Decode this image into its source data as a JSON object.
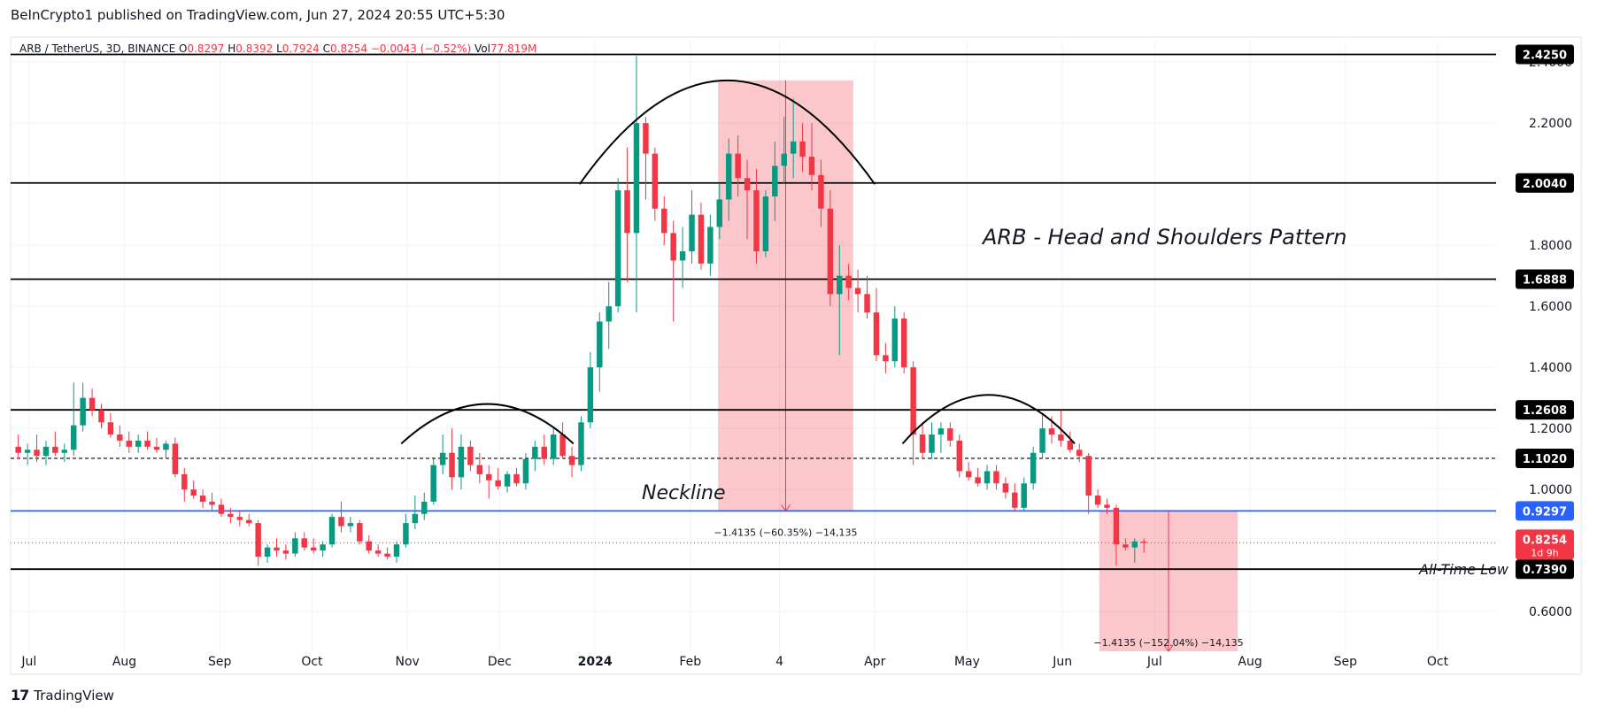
{
  "header": {
    "publisher": "BeInCrypto1 published on TradingView.com, Jun 27, 2024 20:55 UTC+5:30"
  },
  "footer": {
    "logo_mark": "17",
    "logo_text": "TradingView"
  },
  "chart_data": {
    "type": "candlestick",
    "symbol": "ARB / TetherUS, 3D, BINANCE",
    "ohlc_legend": {
      "O_label": "O",
      "O": "0.8297",
      "H_label": "H",
      "H": "0.8392",
      "L_label": "L",
      "L": "0.7924",
      "C_label": "C",
      "C": "0.8254",
      "change": "−0.0043 (−0.52%)",
      "vol_label": "Vol",
      "vol": "77.819M"
    },
    "title": "ARB - Head and Shoulders Pattern",
    "neckline_label": "Neckline",
    "all_time_low_label": "All-Time Low",
    "y_ticks": [
      "2.4000",
      "2.2000",
      "1.8000",
      "1.6000",
      "1.4000",
      "1.2000",
      "1.0000",
      "0.6000"
    ],
    "y_range": [
      0.47,
      2.47
    ],
    "x_ticks": [
      {
        "label": "Jul",
        "date": "2023-07-01"
      },
      {
        "label": "Aug",
        "date": "2023-08-01"
      },
      {
        "label": "Sep",
        "date": "2023-09-01"
      },
      {
        "label": "Oct",
        "date": "2023-10-01"
      },
      {
        "label": "Nov",
        "date": "2023-11-01"
      },
      {
        "label": "Dec",
        "date": "2023-12-01"
      },
      {
        "label": "2024",
        "date": "2024-01-01"
      },
      {
        "label": "Feb",
        "date": "2024-02-01"
      },
      {
        "label": "4",
        "date": "2024-03-01"
      },
      {
        "label": "Apr",
        "date": "2024-04-01"
      },
      {
        "label": "May",
        "date": "2024-05-01"
      },
      {
        "label": "Jun",
        "date": "2024-06-01"
      },
      {
        "label": "Jul",
        "date": "2024-07-01"
      },
      {
        "label": "Aug",
        "date": "2024-08-01"
      },
      {
        "label": "Sep",
        "date": "2024-09-01"
      },
      {
        "label": "Oct",
        "date": "2024-10-01"
      }
    ],
    "x_range": [
      "2023-06-25",
      "2024-10-20"
    ],
    "levels": [
      {
        "value": 2.425,
        "label": "2.4250",
        "style": "solid",
        "color": "#000000"
      },
      {
        "value": 2.004,
        "label": "2.0040",
        "style": "solid",
        "color": "#000000"
      },
      {
        "value": 1.6888,
        "label": "1.6888",
        "style": "solid",
        "color": "#000000"
      },
      {
        "value": 1.2608,
        "label": "1.2608",
        "style": "solid",
        "color": "#000000"
      },
      {
        "value": 1.102,
        "label": "1.1020",
        "style": "dashed",
        "color": "#000000"
      },
      {
        "value": 0.9297,
        "label": "0.9297",
        "style": "solid",
        "color": "#2962ff"
      },
      {
        "value": 0.739,
        "label": "0.7390",
        "style": "solid",
        "color": "#000000"
      }
    ],
    "current_price": {
      "value": 0.8254,
      "label": "0.8254",
      "countdown": "1d 9h",
      "color": "#f23645"
    },
    "measure_zones": [
      {
        "start": "2024-02-10",
        "end": "2024-03-25",
        "top": 2.34,
        "bottom": 0.9297,
        "label": "−1.4135 (−60.35%) −14,135"
      },
      {
        "start": "2024-06-13",
        "end": "2024-07-28",
        "top": 0.9297,
        "bottom": 0.47,
        "label": "−1.4135 (−152.04%) −14,135"
      }
    ],
    "arcs": [
      {
        "start": "2023-10-30",
        "end": "2023-12-25",
        "peak": 1.28,
        "base": 1.15
      },
      {
        "start": "2023-12-27",
        "end": "2024-04-01",
        "peak": 2.34,
        "base": 2.0
      },
      {
        "start": "2024-04-10",
        "end": "2024-06-05",
        "peak": 1.31,
        "base": 1.15
      }
    ],
    "colors": {
      "up": "#089981",
      "down": "#f23645"
    },
    "candles": [
      {
        "d": "2023-06-26",
        "o": 1.14,
        "h": 1.18,
        "l": 1.1,
        "c": 1.12
      },
      {
        "d": "2023-06-29",
        "o": 1.12,
        "h": 1.15,
        "l": 1.08,
        "c": 1.13
      },
      {
        "d": "2023-07-02",
        "o": 1.13,
        "h": 1.18,
        "l": 1.09,
        "c": 1.11
      },
      {
        "d": "2023-07-05",
        "o": 1.11,
        "h": 1.16,
        "l": 1.08,
        "c": 1.14
      },
      {
        "d": "2023-07-08",
        "o": 1.14,
        "h": 1.19,
        "l": 1.11,
        "c": 1.12
      },
      {
        "d": "2023-07-11",
        "o": 1.12,
        "h": 1.15,
        "l": 1.09,
        "c": 1.13
      },
      {
        "d": "2023-07-14",
        "o": 1.13,
        "h": 1.35,
        "l": 1.11,
        "c": 1.21
      },
      {
        "d": "2023-07-17",
        "o": 1.21,
        "h": 1.35,
        "l": 1.19,
        "c": 1.3
      },
      {
        "d": "2023-07-20",
        "o": 1.3,
        "h": 1.33,
        "l": 1.24,
        "c": 1.26
      },
      {
        "d": "2023-07-23",
        "o": 1.26,
        "h": 1.28,
        "l": 1.2,
        "c": 1.22
      },
      {
        "d": "2023-07-26",
        "o": 1.22,
        "h": 1.25,
        "l": 1.17,
        "c": 1.18
      },
      {
        "d": "2023-07-29",
        "o": 1.18,
        "h": 1.21,
        "l": 1.14,
        "c": 1.16
      },
      {
        "d": "2023-08-01",
        "o": 1.16,
        "h": 1.19,
        "l": 1.12,
        "c": 1.14
      },
      {
        "d": "2023-08-04",
        "o": 1.14,
        "h": 1.18,
        "l": 1.12,
        "c": 1.16
      },
      {
        "d": "2023-08-07",
        "o": 1.16,
        "h": 1.19,
        "l": 1.13,
        "c": 1.14
      },
      {
        "d": "2023-08-10",
        "o": 1.14,
        "h": 1.17,
        "l": 1.12,
        "c": 1.13
      },
      {
        "d": "2023-08-13",
        "o": 1.13,
        "h": 1.16,
        "l": 1.1,
        "c": 1.15
      },
      {
        "d": "2023-08-16",
        "o": 1.15,
        "h": 1.17,
        "l": 1.04,
        "c": 1.05
      },
      {
        "d": "2023-08-19",
        "o": 1.05,
        "h": 1.07,
        "l": 0.96,
        "c": 1.0
      },
      {
        "d": "2023-08-22",
        "o": 1.0,
        "h": 1.03,
        "l": 0.97,
        "c": 0.98
      },
      {
        "d": "2023-08-25",
        "o": 0.98,
        "h": 1.0,
        "l": 0.94,
        "c": 0.96
      },
      {
        "d": "2023-08-28",
        "o": 0.96,
        "h": 0.99,
        "l": 0.93,
        "c": 0.95
      },
      {
        "d": "2023-08-31",
        "o": 0.95,
        "h": 0.97,
        "l": 0.91,
        "c": 0.92
      },
      {
        "d": "2023-09-03",
        "o": 0.92,
        "h": 0.94,
        "l": 0.89,
        "c": 0.91
      },
      {
        "d": "2023-09-06",
        "o": 0.91,
        "h": 0.93,
        "l": 0.88,
        "c": 0.9
      },
      {
        "d": "2023-09-09",
        "o": 0.9,
        "h": 0.92,
        "l": 0.88,
        "c": 0.89
      },
      {
        "d": "2023-09-12",
        "o": 0.89,
        "h": 0.9,
        "l": 0.75,
        "c": 0.78
      },
      {
        "d": "2023-09-15",
        "o": 0.78,
        "h": 0.82,
        "l": 0.76,
        "c": 0.81
      },
      {
        "d": "2023-09-18",
        "o": 0.81,
        "h": 0.84,
        "l": 0.78,
        "c": 0.8
      },
      {
        "d": "2023-09-21",
        "o": 0.8,
        "h": 0.82,
        "l": 0.77,
        "c": 0.79
      },
      {
        "d": "2023-09-24",
        "o": 0.79,
        "h": 0.86,
        "l": 0.78,
        "c": 0.84
      },
      {
        "d": "2023-09-27",
        "o": 0.84,
        "h": 0.86,
        "l": 0.8,
        "c": 0.81
      },
      {
        "d": "2023-09-30",
        "o": 0.81,
        "h": 0.84,
        "l": 0.79,
        "c": 0.8
      },
      {
        "d": "2023-10-03",
        "o": 0.8,
        "h": 0.83,
        "l": 0.78,
        "c": 0.82
      },
      {
        "d": "2023-10-06",
        "o": 0.82,
        "h": 0.92,
        "l": 0.81,
        "c": 0.91
      },
      {
        "d": "2023-10-09",
        "o": 0.91,
        "h": 0.96,
        "l": 0.86,
        "c": 0.88
      },
      {
        "d": "2023-10-12",
        "o": 0.88,
        "h": 0.91,
        "l": 0.86,
        "c": 0.89
      },
      {
        "d": "2023-10-15",
        "o": 0.89,
        "h": 0.9,
        "l": 0.82,
        "c": 0.83
      },
      {
        "d": "2023-10-18",
        "o": 0.83,
        "h": 0.85,
        "l": 0.79,
        "c": 0.8
      },
      {
        "d": "2023-10-21",
        "o": 0.8,
        "h": 0.82,
        "l": 0.78,
        "c": 0.79
      },
      {
        "d": "2023-10-24",
        "o": 0.79,
        "h": 0.81,
        "l": 0.77,
        "c": 0.78
      },
      {
        "d": "2023-10-27",
        "o": 0.78,
        "h": 0.83,
        "l": 0.76,
        "c": 0.82
      },
      {
        "d": "2023-10-30",
        "o": 0.82,
        "h": 0.92,
        "l": 0.81,
        "c": 0.89
      },
      {
        "d": "2023-11-02",
        "o": 0.89,
        "h": 0.98,
        "l": 0.87,
        "c": 0.92
      },
      {
        "d": "2023-11-05",
        "o": 0.92,
        "h": 0.99,
        "l": 0.9,
        "c": 0.96
      },
      {
        "d": "2023-11-08",
        "o": 0.96,
        "h": 1.1,
        "l": 0.95,
        "c": 1.08
      },
      {
        "d": "2023-11-11",
        "o": 1.08,
        "h": 1.18,
        "l": 1.05,
        "c": 1.12
      },
      {
        "d": "2023-11-14",
        "o": 1.12,
        "h": 1.2,
        "l": 1.0,
        "c": 1.04
      },
      {
        "d": "2023-11-17",
        "o": 1.04,
        "h": 1.18,
        "l": 1.0,
        "c": 1.14
      },
      {
        "d": "2023-11-20",
        "o": 1.14,
        "h": 1.16,
        "l": 1.06,
        "c": 1.08
      },
      {
        "d": "2023-11-23",
        "o": 1.08,
        "h": 1.12,
        "l": 1.02,
        "c": 1.05
      },
      {
        "d": "2023-11-26",
        "o": 1.05,
        "h": 1.08,
        "l": 0.97,
        "c": 1.03
      },
      {
        "d": "2023-11-29",
        "o": 1.03,
        "h": 1.07,
        "l": 1.0,
        "c": 1.01
      },
      {
        "d": "2023-12-02",
        "o": 1.01,
        "h": 1.06,
        "l": 0.99,
        "c": 1.05
      },
      {
        "d": "2023-12-05",
        "o": 1.05,
        "h": 1.07,
        "l": 1.01,
        "c": 1.02
      },
      {
        "d": "2023-12-08",
        "o": 1.02,
        "h": 1.12,
        "l": 1.0,
        "c": 1.1
      },
      {
        "d": "2023-12-11",
        "o": 1.1,
        "h": 1.16,
        "l": 1.06,
        "c": 1.14
      },
      {
        "d": "2023-12-14",
        "o": 1.14,
        "h": 1.18,
        "l": 1.08,
        "c": 1.1
      },
      {
        "d": "2023-12-17",
        "o": 1.1,
        "h": 1.2,
        "l": 1.08,
        "c": 1.18
      },
      {
        "d": "2023-12-20",
        "o": 1.18,
        "h": 1.22,
        "l": 1.1,
        "c": 1.11
      },
      {
        "d": "2023-12-23",
        "o": 1.11,
        "h": 1.14,
        "l": 1.04,
        "c": 1.08
      },
      {
        "d": "2023-12-26",
        "o": 1.08,
        "h": 1.24,
        "l": 1.06,
        "c": 1.22
      },
      {
        "d": "2023-12-29",
        "o": 1.22,
        "h": 1.45,
        "l": 1.2,
        "c": 1.4
      },
      {
        "d": "2024-01-01",
        "o": 1.4,
        "h": 1.58,
        "l": 1.32,
        "c": 1.55
      },
      {
        "d": "2024-01-04",
        "o": 1.55,
        "h": 1.68,
        "l": 1.46,
        "c": 1.6
      },
      {
        "d": "2024-01-07",
        "o": 1.6,
        "h": 2.02,
        "l": 1.58,
        "c": 1.98
      },
      {
        "d": "2024-01-10",
        "o": 1.98,
        "h": 2.12,
        "l": 1.68,
        "c": 1.84
      },
      {
        "d": "2024-01-13",
        "o": 1.84,
        "h": 2.42,
        "l": 1.58,
        "c": 2.2
      },
      {
        "d": "2024-01-16",
        "o": 2.2,
        "h": 2.22,
        "l": 1.95,
        "c": 2.1
      },
      {
        "d": "2024-01-19",
        "o": 2.1,
        "h": 2.12,
        "l": 1.88,
        "c": 1.92
      },
      {
        "d": "2024-01-22",
        "o": 1.92,
        "h": 1.96,
        "l": 1.8,
        "c": 1.84
      },
      {
        "d": "2024-01-25",
        "o": 1.84,
        "h": 1.88,
        "l": 1.55,
        "c": 1.75
      },
      {
        "d": "2024-01-28",
        "o": 1.75,
        "h": 1.86,
        "l": 1.66,
        "c": 1.78
      },
      {
        "d": "2024-01-31",
        "o": 1.78,
        "h": 1.98,
        "l": 1.74,
        "c": 1.9
      },
      {
        "d": "2024-02-03",
        "o": 1.9,
        "h": 1.94,
        "l": 1.72,
        "c": 1.74
      },
      {
        "d": "2024-02-06",
        "o": 1.74,
        "h": 1.9,
        "l": 1.7,
        "c": 1.86
      },
      {
        "d": "2024-02-09",
        "o": 1.86,
        "h": 2.0,
        "l": 1.82,
        "c": 1.95
      },
      {
        "d": "2024-02-12",
        "o": 1.95,
        "h": 2.15,
        "l": 1.88,
        "c": 2.1
      },
      {
        "d": "2024-02-15",
        "o": 2.1,
        "h": 2.16,
        "l": 1.96,
        "c": 2.02
      },
      {
        "d": "2024-02-18",
        "o": 2.02,
        "h": 2.08,
        "l": 1.82,
        "c": 1.98
      },
      {
        "d": "2024-02-21",
        "o": 1.98,
        "h": 2.05,
        "l": 1.74,
        "c": 1.78
      },
      {
        "d": "2024-02-24",
        "o": 1.78,
        "h": 1.98,
        "l": 1.76,
        "c": 1.96
      },
      {
        "d": "2024-02-27",
        "o": 1.96,
        "h": 2.14,
        "l": 1.88,
        "c": 2.06
      },
      {
        "d": "2024-03-01",
        "o": 2.06,
        "h": 2.22,
        "l": 2.0,
        "c": 2.1
      },
      {
        "d": "2024-03-04",
        "o": 2.1,
        "h": 2.28,
        "l": 2.02,
        "c": 2.14
      },
      {
        "d": "2024-03-07",
        "o": 2.14,
        "h": 2.2,
        "l": 2.04,
        "c": 2.09
      },
      {
        "d": "2024-03-10",
        "o": 2.09,
        "h": 2.2,
        "l": 1.98,
        "c": 2.03
      },
      {
        "d": "2024-03-13",
        "o": 2.03,
        "h": 2.08,
        "l": 1.86,
        "c": 1.92
      },
      {
        "d": "2024-03-16",
        "o": 1.92,
        "h": 1.98,
        "l": 1.6,
        "c": 1.64
      },
      {
        "d": "2024-03-19",
        "o": 1.64,
        "h": 1.8,
        "l": 1.44,
        "c": 1.7
      },
      {
        "d": "2024-03-22",
        "o": 1.7,
        "h": 1.74,
        "l": 1.62,
        "c": 1.66
      },
      {
        "d": "2024-03-25",
        "o": 1.66,
        "h": 1.72,
        "l": 1.58,
        "c": 1.64
      },
      {
        "d": "2024-03-28",
        "o": 1.64,
        "h": 1.7,
        "l": 1.56,
        "c": 1.58
      },
      {
        "d": "2024-03-31",
        "o": 1.58,
        "h": 1.66,
        "l": 1.42,
        "c": 1.44
      },
      {
        "d": "2024-04-03",
        "o": 1.44,
        "h": 1.48,
        "l": 1.38,
        "c": 1.42
      },
      {
        "d": "2024-04-06",
        "o": 1.42,
        "h": 1.6,
        "l": 1.4,
        "c": 1.56
      },
      {
        "d": "2024-04-09",
        "o": 1.56,
        "h": 1.58,
        "l": 1.38,
        "c": 1.4
      },
      {
        "d": "2024-04-12",
        "o": 1.4,
        "h": 1.42,
        "l": 1.08,
        "c": 1.18
      },
      {
        "d": "2024-04-15",
        "o": 1.18,
        "h": 1.22,
        "l": 1.1,
        "c": 1.12
      },
      {
        "d": "2024-04-18",
        "o": 1.12,
        "h": 1.22,
        "l": 1.1,
        "c": 1.18
      },
      {
        "d": "2024-04-21",
        "o": 1.18,
        "h": 1.22,
        "l": 1.12,
        "c": 1.2
      },
      {
        "d": "2024-04-24",
        "o": 1.2,
        "h": 1.22,
        "l": 1.14,
        "c": 1.16
      },
      {
        "d": "2024-04-27",
        "o": 1.16,
        "h": 1.18,
        "l": 1.04,
        "c": 1.06
      },
      {
        "d": "2024-04-30",
        "o": 1.06,
        "h": 1.09,
        "l": 1.03,
        "c": 1.04
      },
      {
        "d": "2024-05-03",
        "o": 1.04,
        "h": 1.07,
        "l": 1.01,
        "c": 1.02
      },
      {
        "d": "2024-05-06",
        "o": 1.02,
        "h": 1.08,
        "l": 1.0,
        "c": 1.06
      },
      {
        "d": "2024-05-09",
        "o": 1.06,
        "h": 1.08,
        "l": 1.0,
        "c": 1.02
      },
      {
        "d": "2024-05-12",
        "o": 1.02,
        "h": 1.04,
        "l": 0.97,
        "c": 0.99
      },
      {
        "d": "2024-05-15",
        "o": 0.99,
        "h": 1.02,
        "l": 0.93,
        "c": 0.94
      },
      {
        "d": "2024-05-18",
        "o": 0.94,
        "h": 1.04,
        "l": 0.93,
        "c": 1.02
      },
      {
        "d": "2024-05-21",
        "o": 1.02,
        "h": 1.14,
        "l": 1.0,
        "c": 1.12
      },
      {
        "d": "2024-05-24",
        "o": 1.12,
        "h": 1.25,
        "l": 1.1,
        "c": 1.2
      },
      {
        "d": "2024-05-27",
        "o": 1.2,
        "h": 1.24,
        "l": 1.15,
        "c": 1.18
      },
      {
        "d": "2024-05-30",
        "o": 1.18,
        "h": 1.26,
        "l": 1.14,
        "c": 1.16
      },
      {
        "d": "2024-06-02",
        "o": 1.16,
        "h": 1.19,
        "l": 1.12,
        "c": 1.13
      },
      {
        "d": "2024-06-05",
        "o": 1.13,
        "h": 1.15,
        "l": 1.09,
        "c": 1.11
      },
      {
        "d": "2024-06-08",
        "o": 1.11,
        "h": 1.12,
        "l": 0.92,
        "c": 0.98
      },
      {
        "d": "2024-06-11",
        "o": 0.98,
        "h": 1.0,
        "l": 0.94,
        "c": 0.95
      },
      {
        "d": "2024-06-14",
        "o": 0.95,
        "h": 0.97,
        "l": 0.92,
        "c": 0.94
      },
      {
        "d": "2024-06-17",
        "o": 0.94,
        "h": 0.95,
        "l": 0.75,
        "c": 0.82
      },
      {
        "d": "2024-06-20",
        "o": 0.82,
        "h": 0.84,
        "l": 0.8,
        "c": 0.81
      },
      {
        "d": "2024-06-23",
        "o": 0.81,
        "h": 0.84,
        "l": 0.76,
        "c": 0.83
      },
      {
        "d": "2024-06-26",
        "o": 0.8297,
        "h": 0.8392,
        "l": 0.7924,
        "c": 0.8254
      }
    ]
  }
}
